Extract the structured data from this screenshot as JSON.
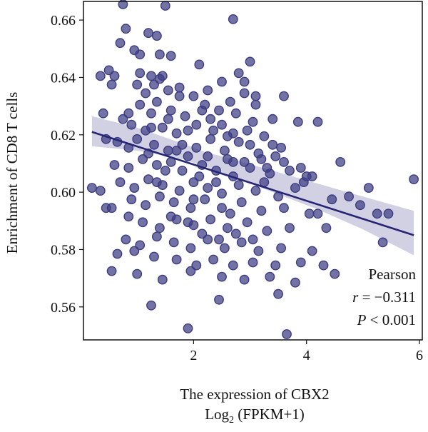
{
  "chart_data": {
    "type": "scatter",
    "xlabel": "The expression of CBX2",
    "xlabel_line2_prefix": "Log",
    "xlabel_line2_sub": "2",
    "xlabel_line2_suffix": " (FPKM+1)",
    "ylabel": "Enrichment of CD8 T cells",
    "xlim": [
      0.05,
      6.05
    ],
    "ylim": [
      0.5485,
      0.6665
    ],
    "xticks": [
      2,
      4,
      6
    ],
    "xtick_labels": [
      "2",
      "4",
      "6"
    ],
    "yticks": [
      0.56,
      0.58,
      0.6,
      0.62,
      0.64,
      0.66
    ],
    "ytick_labels": [
      "0.56",
      "0.58",
      "0.60",
      "0.62",
      "0.64",
      "0.66"
    ],
    "grid": false,
    "point_color": "#3d3b82",
    "line_color": "#262573",
    "band_color": "#c9c9de",
    "regression": {
      "x_start": 0.2,
      "x_end": 5.9,
      "y_start": 0.621,
      "y_end": 0.585
    },
    "confidence_band": {
      "x": [
        0.2,
        1.0,
        1.8,
        2.2,
        2.6,
        3.4,
        4.2,
        5.0,
        5.9
      ],
      "lower": [
        0.616,
        0.6145,
        0.6115,
        0.609,
        0.606,
        0.6,
        0.594,
        0.587,
        0.578
      ],
      "upper": [
        0.6265,
        0.6225,
        0.617,
        0.614,
        0.612,
        0.6075,
        0.603,
        0.5985,
        0.5935
      ]
    },
    "annotation": {
      "method": "Pearson",
      "r_label": "r",
      "r_value": " = −0.311",
      "p_label": "P",
      "p_value": " < 0.001"
    },
    "points": [
      [
        0.75,
        0.6655
      ],
      [
        1.5,
        0.665
      ],
      [
        2.7,
        0.6603
      ],
      [
        0.8,
        0.657
      ],
      [
        1.2,
        0.6555
      ],
      [
        1.35,
        0.6545
      ],
      [
        0.7,
        0.652
      ],
      [
        0.95,
        0.6495
      ],
      [
        1.05,
        0.648
      ],
      [
        1.4,
        0.648
      ],
      [
        1.6,
        0.6475
      ],
      [
        3.0,
        0.6455
      ],
      [
        0.5,
        0.6425
      ],
      [
        0.6,
        0.6405
      ],
      [
        1.05,
        0.6415
      ],
      [
        1.25,
        0.6405
      ],
      [
        1.45,
        0.6405
      ],
      [
        2.1,
        0.6445
      ],
      [
        2.5,
        0.6385
      ],
      [
        2.8,
        0.6415
      ],
      [
        0.55,
        0.6375
      ],
      [
        1.3,
        0.6375
      ],
      [
        1.55,
        0.6355
      ],
      [
        1.75,
        0.6365
      ],
      [
        2.25,
        0.6355
      ],
      [
        2.9,
        0.6385
      ],
      [
        3.6,
        0.6335
      ],
      [
        1.15,
        0.6345
      ],
      [
        1.35,
        0.6315
      ],
      [
        2.0,
        0.6335
      ],
      [
        2.65,
        0.6315
      ],
      [
        3.1,
        0.6335
      ],
      [
        0.85,
        0.6275
      ],
      [
        1.05,
        0.6305
      ],
      [
        1.25,
        0.6275
      ],
      [
        1.6,
        0.6285
      ],
      [
        1.85,
        0.6265
      ],
      [
        2.2,
        0.6305
      ],
      [
        2.45,
        0.6285
      ],
      [
        2.75,
        0.6275
      ],
      [
        3.05,
        0.6245
      ],
      [
        3.4,
        0.6255
      ],
      [
        3.85,
        0.6245
      ],
      [
        0.9,
        0.6235
      ],
      [
        1.15,
        0.6215
      ],
      [
        1.45,
        0.6225
      ],
      [
        1.7,
        0.6205
      ],
      [
        2.05,
        0.6235
      ],
      [
        2.35,
        0.6215
      ],
      [
        2.6,
        0.6195
      ],
      [
        2.95,
        0.6215
      ],
      [
        3.25,
        0.6195
      ],
      [
        0.45,
        0.6185
      ],
      [
        0.65,
        0.6175
      ],
      [
        0.85,
        0.6155
      ],
      [
        1.0,
        0.6185
      ],
      [
        1.3,
        0.6165
      ],
      [
        1.55,
        0.6145
      ],
      [
        1.8,
        0.6165
      ],
      [
        2.05,
        0.6155
      ],
      [
        2.3,
        0.6185
      ],
      [
        2.55,
        0.6145
      ],
      [
        2.8,
        0.6175
      ],
      [
        3.15,
        0.6135
      ],
      [
        3.45,
        0.6125
      ],
      [
        0.6,
        0.6095
      ],
      [
        0.85,
        0.6085
      ],
      [
        1.1,
        0.6115
      ],
      [
        1.35,
        0.6095
      ],
      [
        1.6,
        0.6105
      ],
      [
        1.9,
        0.6125
      ],
      [
        2.15,
        0.6095
      ],
      [
        2.4,
        0.6075
      ],
      [
        2.7,
        0.6105
      ],
      [
        3.0,
        0.6085
      ],
      [
        3.35,
        0.6065
      ],
      [
        3.7,
        0.6075
      ],
      [
        4.0,
        0.6055
      ],
      [
        0.7,
        0.6035
      ],
      [
        0.95,
        0.6015
      ],
      [
        1.2,
        0.6045
      ],
      [
        1.45,
        0.6025
      ],
      [
        1.75,
        0.6005
      ],
      [
        2.0,
        0.6035
      ],
      [
        2.25,
        0.6015
      ],
      [
        2.5,
        0.5995
      ],
      [
        2.8,
        0.6025
      ],
      [
        3.1,
        0.6005
      ],
      [
        3.5,
        0.5985
      ],
      [
        0.9,
        0.5975
      ],
      [
        1.15,
        0.5955
      ],
      [
        1.4,
        0.5985
      ],
      [
        1.65,
        0.5965
      ],
      [
        1.95,
        0.5945
      ],
      [
        2.2,
        0.5975
      ],
      [
        2.5,
        0.5945
      ],
      [
        2.85,
        0.5965
      ],
      [
        3.2,
        0.5935
      ],
      [
        3.6,
        0.5945
      ],
      [
        4.2,
        0.5925
      ],
      [
        0.55,
        0.5945
      ],
      [
        0.85,
        0.5915
      ],
      [
        1.1,
        0.5895
      ],
      [
        1.4,
        0.5875
      ],
      [
        1.7,
        0.5905
      ],
      [
        2.0,
        0.5885
      ],
      [
        2.3,
        0.5905
      ],
      [
        2.6,
        0.5875
      ],
      [
        2.95,
        0.5895
      ],
      [
        3.3,
        0.5865
      ],
      [
        3.7,
        0.5875
      ],
      [
        0.8,
        0.5835
      ],
      [
        1.05,
        0.5815
      ],
      [
        1.35,
        0.5845
      ],
      [
        1.65,
        0.5825
      ],
      [
        1.95,
        0.5805
      ],
      [
        2.25,
        0.5835
      ],
      [
        2.55,
        0.5805
      ],
      [
        2.85,
        0.5825
      ],
      [
        3.15,
        0.5795
      ],
      [
        3.55,
        0.5805
      ],
      [
        4.1,
        0.5795
      ],
      [
        0.65,
        0.5785
      ],
      [
        0.95,
        0.5795
      ],
      [
        1.3,
        0.5775
      ],
      [
        1.7,
        0.5765
      ],
      [
        2.05,
        0.5745
      ],
      [
        2.35,
        0.5765
      ],
      [
        2.7,
        0.5745
      ],
      [
        3.05,
        0.5755
      ],
      [
        3.45,
        0.5745
      ],
      [
        3.9,
        0.5755
      ],
      [
        4.3,
        0.5745
      ],
      [
        0.55,
        0.5725
      ],
      [
        1.0,
        0.5715
      ],
      [
        1.45,
        0.5695
      ],
      [
        1.95,
        0.5725
      ],
      [
        2.5,
        0.5705
      ],
      [
        2.9,
        0.5695
      ],
      [
        3.35,
        0.5705
      ],
      [
        3.8,
        0.5685
      ],
      [
        4.5,
        0.5715
      ],
      [
        1.25,
        0.5605
      ],
      [
        2.45,
        0.5625
      ],
      [
        3.5,
        0.5645
      ],
      [
        1.9,
        0.5525
      ],
      [
        3.65,
        0.5505
      ],
      [
        0.35,
        0.6405
      ],
      [
        0.4,
        0.6275
      ],
      [
        0.35,
        0.6005
      ],
      [
        0.2,
        0.6015
      ],
      [
        0.45,
        0.5945
      ],
      [
        5.9,
        0.6045
      ],
      [
        5.1,
        0.6015
      ],
      [
        4.45,
        0.5975
      ],
      [
        4.75,
        0.5985
      ],
      [
        4.95,
        0.5955
      ],
      [
        5.25,
        0.5925
      ],
      [
        5.45,
        0.5925
      ],
      [
        5.35,
        0.5825
      ],
      [
        4.6,
        0.6105
      ],
      [
        4.2,
        0.6245
      ],
      [
        4.35,
        0.5875
      ],
      [
        4.05,
        0.5925
      ],
      [
        3.95,
        0.6035
      ],
      [
        3.8,
        0.6015
      ],
      [
        2.9,
        0.6345
      ],
      [
        3.1,
        0.6305
      ],
      [
        3.55,
        0.6155
      ],
      [
        2.15,
        0.6285
      ],
      [
        1.2,
        0.6135
      ],
      [
        1.5,
        0.6075
      ],
      [
        1.8,
        0.6075
      ],
      [
        2.1,
        0.6055
      ],
      [
        2.4,
        0.6035
      ],
      [
        2.7,
        0.6055
      ],
      [
        3.25,
        0.6035
      ],
      [
        1.35,
        0.6035
      ],
      [
        1.6,
        0.5915
      ],
      [
        1.9,
        0.5895
      ],
      [
        2.15,
        0.5855
      ],
      [
        2.45,
        0.5835
      ],
      [
        2.75,
        0.5855
      ],
      [
        3.05,
        0.5835
      ],
      [
        2.65,
        0.5925
      ],
      [
        2.0,
        0.5975
      ],
      [
        1.55,
        0.6255
      ],
      [
        1.75,
        0.6335
      ],
      [
        1.4,
        0.6395
      ],
      [
        1.0,
        0.6375
      ],
      [
        0.75,
        0.6255
      ],
      [
        1.9,
        0.6215
      ],
      [
        2.3,
        0.6255
      ],
      [
        2.5,
        0.6235
      ],
      [
        2.7,
        0.6205
      ],
      [
        3.4,
        0.6165
      ],
      [
        3.6,
        0.6105
      ],
      [
        3.2,
        0.6115
      ],
      [
        3.0,
        0.6165
      ],
      [
        1.25,
        0.6225
      ],
      [
        1.7,
        0.6145
      ],
      [
        2.25,
        0.6125
      ],
      [
        2.6,
        0.6115
      ],
      [
        2.9,
        0.6105
      ],
      [
        3.3,
        0.6085
      ],
      [
        3.9,
        0.6085
      ],
      [
        4.1,
        0.6055
      ]
    ]
  }
}
